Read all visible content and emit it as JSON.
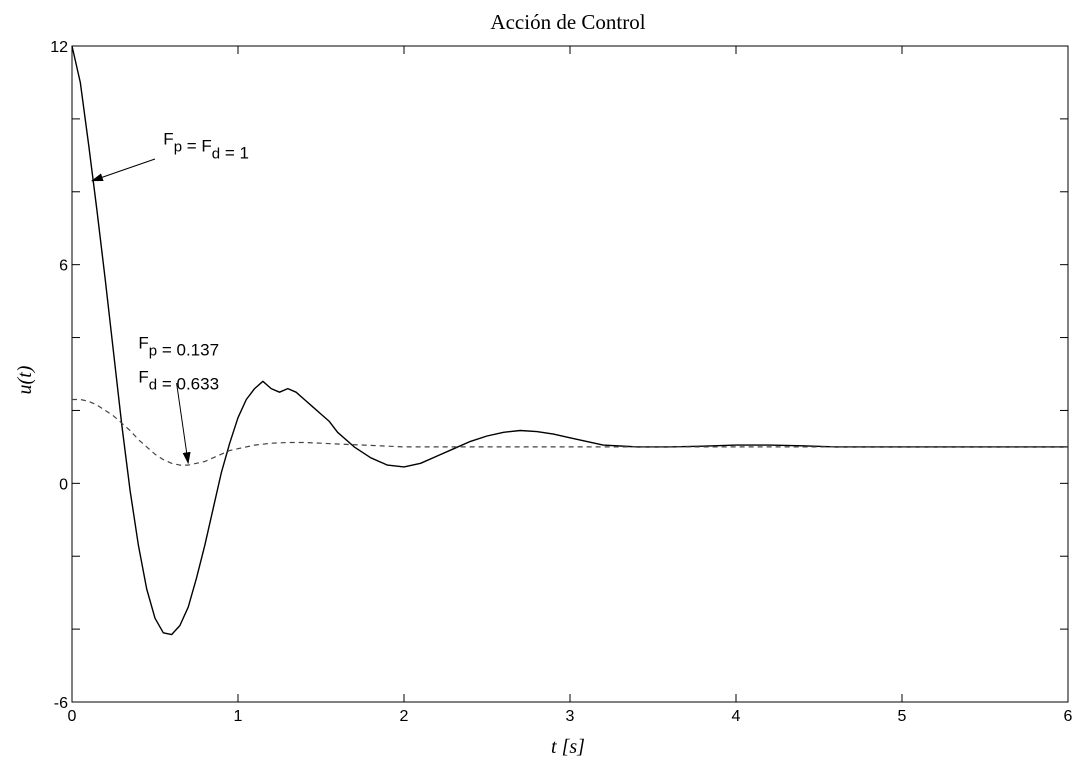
{
  "chart_data": {
    "type": "line",
    "title": "Acción de Control",
    "xlabel": "t [s]",
    "ylabel": "u(t)",
    "xlim": [
      0,
      6
    ],
    "ylim": [
      -6,
      12
    ],
    "xticks": [
      0,
      1,
      2,
      3,
      4,
      5,
      6
    ],
    "yticks": [
      -6,
      0,
      6,
      12
    ],
    "grid": false,
    "series": [
      {
        "style": "solid",
        "color": "#000000",
        "x": [
          0,
          0.05,
          0.1,
          0.15,
          0.2,
          0.25,
          0.3,
          0.35,
          0.4,
          0.45,
          0.5,
          0.55,
          0.6,
          0.65,
          0.7,
          0.75,
          0.8,
          0.85,
          0.9,
          0.95,
          1.0,
          1.05,
          1.1,
          1.15,
          1.2,
          1.25,
          1.3,
          1.35,
          1.4,
          1.45,
          1.5,
          1.55,
          1.6,
          1.7,
          1.8,
          1.9,
          2.0,
          2.1,
          2.2,
          2.3,
          2.4,
          2.5,
          2.6,
          2.7,
          2.8,
          2.9,
          3.0,
          3.1,
          3.2,
          3.4,
          3.6,
          3.8,
          4.0,
          4.2,
          4.4,
          4.6,
          5.0,
          5.5,
          6.0
        ],
        "y": [
          12.0,
          11.0,
          9.3,
          7.5,
          5.6,
          3.6,
          1.6,
          -0.2,
          -1.7,
          -2.9,
          -3.7,
          -4.1,
          -4.15,
          -3.9,
          -3.4,
          -2.6,
          -1.7,
          -0.7,
          0.3,
          1.1,
          1.8,
          2.3,
          2.6,
          2.8,
          2.6,
          2.5,
          2.6,
          2.5,
          2.3,
          2.1,
          1.9,
          1.7,
          1.4,
          1.0,
          0.7,
          0.5,
          0.45,
          0.55,
          0.75,
          0.95,
          1.15,
          1.3,
          1.4,
          1.45,
          1.42,
          1.35,
          1.25,
          1.15,
          1.05,
          1.0,
          1.0,
          1.02,
          1.05,
          1.05,
          1.03,
          1.0,
          1.0,
          1.0,
          1.0
        ]
      },
      {
        "style": "dashed",
        "color": "#444444",
        "x": [
          0,
          0.05,
          0.1,
          0.15,
          0.2,
          0.25,
          0.3,
          0.35,
          0.4,
          0.45,
          0.5,
          0.55,
          0.6,
          0.65,
          0.7,
          0.75,
          0.8,
          0.85,
          0.9,
          0.95,
          1.0,
          1.1,
          1.2,
          1.3,
          1.4,
          1.5,
          1.6,
          1.8,
          2.0,
          2.5,
          3.0,
          4.0,
          5.0,
          6.0
        ],
        "y": [
          2.3,
          2.3,
          2.25,
          2.15,
          2.0,
          1.85,
          1.65,
          1.45,
          1.2,
          1.0,
          0.8,
          0.65,
          0.55,
          0.5,
          0.5,
          0.55,
          0.6,
          0.7,
          0.8,
          0.9,
          0.95,
          1.05,
          1.1,
          1.12,
          1.12,
          1.1,
          1.08,
          1.04,
          1.0,
          1.0,
          1.0,
          1.0,
          1.0,
          1.0
        ]
      }
    ],
    "annotations": [
      {
        "id": "a1",
        "lines": [
          {
            "parts": [
              {
                "t": "F"
              },
              {
                "t": "p",
                "sub": true
              },
              {
                "t": " = F"
              },
              {
                "t": "d",
                "sub": true
              },
              {
                "t": " = 1"
              }
            ]
          }
        ],
        "text_x": 0.55,
        "text_y": 9.3,
        "arrow_from": [
          0.5,
          8.9
        ],
        "arrow_to": [
          0.12,
          8.3
        ]
      },
      {
        "id": "a2",
        "lines": [
          {
            "parts": [
              {
                "t": "F"
              },
              {
                "t": "p",
                "sub": true
              },
              {
                "t": " = 0.137"
              }
            ]
          },
          {
            "parts": [
              {
                "t": "F"
              },
              {
                "t": "d",
                "sub": true
              },
              {
                "t": " = 0.633"
              }
            ]
          }
        ],
        "text_x": 0.4,
        "text_y": 3.7,
        "arrow_from": [
          0.63,
          2.75
        ],
        "arrow_to": [
          0.7,
          0.55
        ]
      }
    ]
  }
}
